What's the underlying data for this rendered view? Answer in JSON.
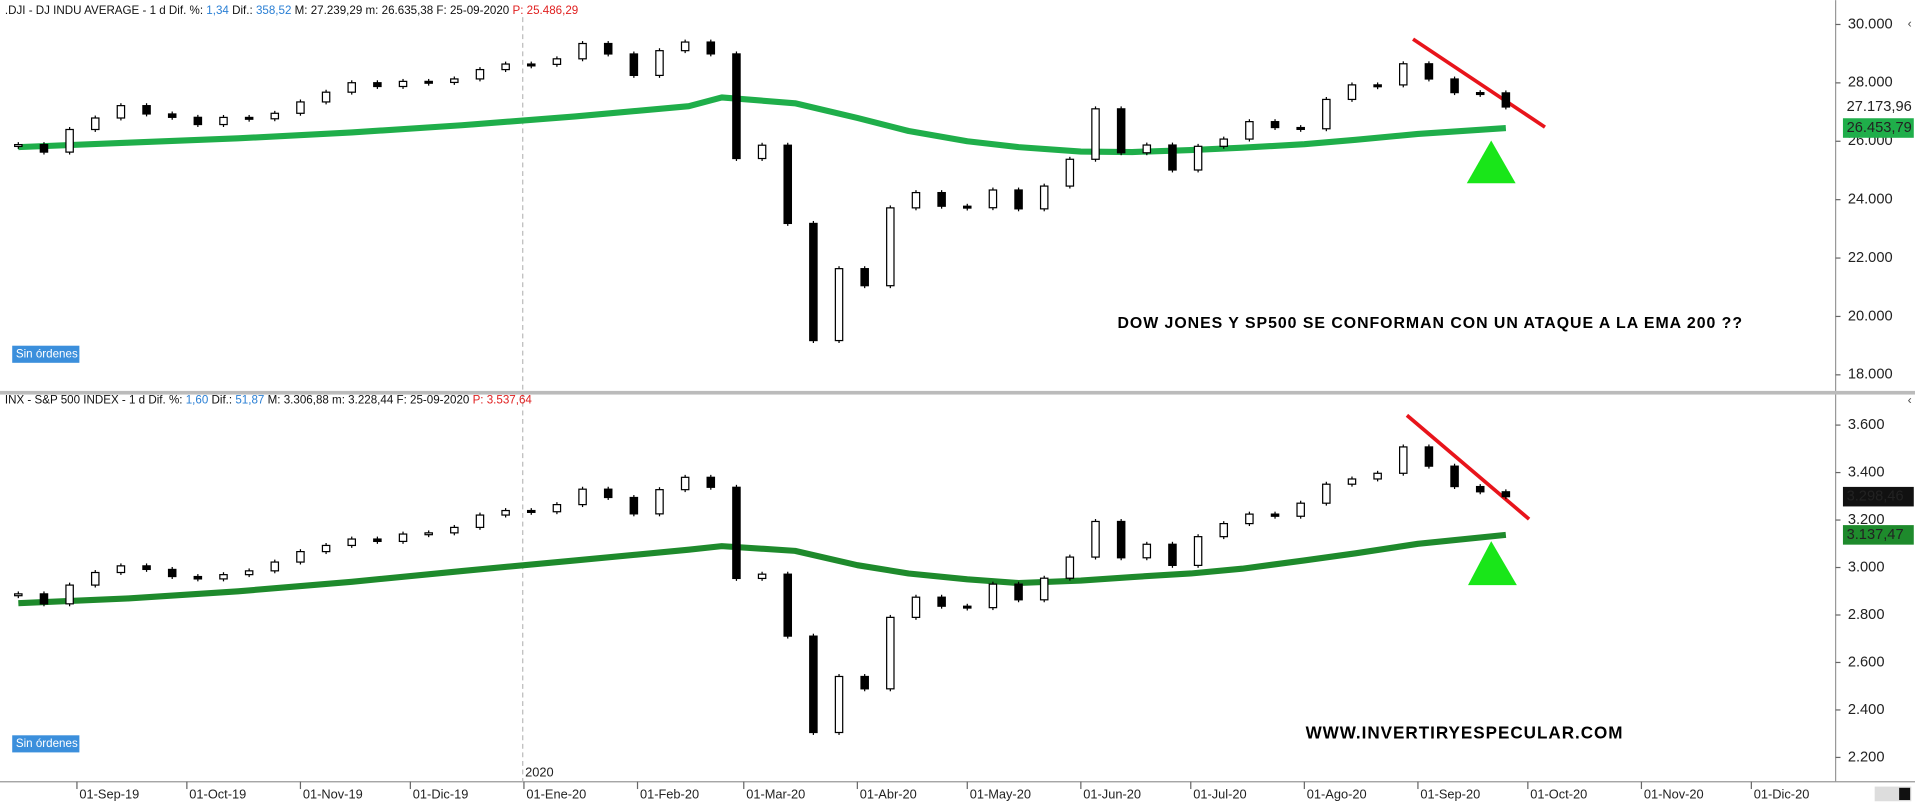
{
  "chart_data": [
    {
      "type": "candlestick",
      "header": [
        {
          "text": ".DJI - DJ INDU AVERAGE - 1 d  Dif. %:",
          "color": "#111"
        },
        {
          "text": " 1,34 ",
          "color": "#2a7fd4"
        },
        {
          "text": " Dif.:",
          "color": "#111"
        },
        {
          "text": " 358,52 ",
          "color": "#2a7fd4"
        },
        {
          "text": " M: 27.239,29  m: 26.635,38  F: 25-09-2020 ",
          "color": "#111"
        },
        {
          "text": " P: 25.486,29",
          "color": "#e02020"
        }
      ],
      "annotation": "DOW JONES Y SP500 SE CONFORMAN CON UN ATAQUE A LA EMA 200 ??",
      "button": "Sin órdenes",
      "xlim": [
        "2019-08-11",
        "2020-12-24"
      ],
      "ylim": [
        17450,
        30250
      ],
      "yticks": [
        {
          "value": 18000,
          "label": "18.000"
        },
        {
          "value": 20000,
          "label": "20.000"
        },
        {
          "value": 22000,
          "label": "22.000"
        },
        {
          "value": 24000,
          "label": "24.000"
        },
        {
          "value": 26000,
          "label": "26.000"
        },
        {
          "value": 28000,
          "label": "28.000"
        },
        {
          "value": 30000,
          "label": "30.000"
        }
      ],
      "x": [
        "2019-08-16",
        "2019-08-23",
        "2019-08-30",
        "2019-09-06",
        "2019-09-13",
        "2019-09-20",
        "2019-09-27",
        "2019-10-04",
        "2019-10-11",
        "2019-10-18",
        "2019-10-25",
        "2019-11-01",
        "2019-11-08",
        "2019-11-15",
        "2019-11-22",
        "2019-11-29",
        "2019-12-06",
        "2019-12-13",
        "2019-12-20",
        "2019-12-27",
        "2020-01-03",
        "2020-01-10",
        "2020-01-17",
        "2020-01-24",
        "2020-01-31",
        "2020-02-07",
        "2020-02-14",
        "2020-02-21",
        "2020-02-28",
        "2020-03-06",
        "2020-03-13",
        "2020-03-20",
        "2020-03-27",
        "2020-04-03",
        "2020-04-10",
        "2020-04-17",
        "2020-04-24",
        "2020-05-01",
        "2020-05-08",
        "2020-05-15",
        "2020-05-22",
        "2020-05-29",
        "2020-06-05",
        "2020-06-12",
        "2020-06-19",
        "2020-06-26",
        "2020-07-03",
        "2020-07-10",
        "2020-07-17",
        "2020-07-24",
        "2020-07-31",
        "2020-08-07",
        "2020-08-14",
        "2020-08-21",
        "2020-08-28",
        "2020-09-04",
        "2020-09-11",
        "2020-09-18",
        "2020-09-25"
      ],
      "values": [
        25886,
        25629,
        26403,
        26797,
        27220,
        26935,
        26820,
        26573,
        26817,
        26770,
        26958,
        27347,
        27681,
        28005,
        27876,
        28051,
        28015,
        28135,
        28455,
        28645,
        28634,
        28824,
        29348,
        28990,
        28256,
        29103,
        29398,
        28992,
        25409,
        25865,
        23186,
        19174,
        21637,
        21053,
        23719,
        24242,
        23775,
        23724,
        24331,
        23685,
        24465,
        25383,
        27111,
        25606,
        25871,
        25016,
        25827,
        26075,
        26672,
        26470,
        26428,
        27433,
        27931,
        27930,
        28654,
        28133,
        27666,
        27657,
        27173.96
      ],
      "last_label": "27.173,96",
      "ema_x": [
        "2019-08-16",
        "2019-09-15",
        "2019-10-15",
        "2019-11-15",
        "2019-12-15",
        "2020-01-15",
        "2020-02-15",
        "2020-02-24",
        "2020-03-15",
        "2020-04-01",
        "2020-04-15",
        "2020-05-01",
        "2020-05-15",
        "2020-06-01",
        "2020-06-15",
        "2020-07-01",
        "2020-07-15",
        "2020-08-01",
        "2020-08-15",
        "2020-09-01",
        "2020-09-25"
      ],
      "ema_values": [
        25800,
        25950,
        26100,
        26300,
        26550,
        26850,
        27200,
        27500,
        27300,
        26800,
        26350,
        26000,
        25800,
        25650,
        25630,
        25700,
        25780,
        25900,
        26050,
        26250,
        26453.79
      ],
      "ema_label": "26.453,79",
      "ema_color": "#1fae4a",
      "last_box_color": "#ffffff",
      "last_text_color": "#2a7fd4",
      "ema_text_color": "#ffffff"
    },
    {
      "type": "candlestick",
      "header": [
        {
          "text": "INX - S&P 500 INDEX - 1 d  Dif. %:",
          "color": "#111"
        },
        {
          "text": " 1,60 ",
          "color": "#2a7fd4"
        },
        {
          "text": " Dif.:",
          "color": "#111"
        },
        {
          "text": " 51,87 ",
          "color": "#2a7fd4"
        },
        {
          "text": " M: 3.306,88  m: 3.228,44  F: 25-09-2020 ",
          "color": "#111"
        },
        {
          "text": " P: 3.537,64",
          "color": "#e02020"
        }
      ],
      "annotation": "WWW.INVERTIRYESPECULAR.COM",
      "button": "Sin órdenes",
      "year_label": "2020",
      "xlim": [
        "2019-08-11",
        "2020-12-24"
      ],
      "xticks": [
        {
          "value": "2019-09-01",
          "label": "01-Sep-19"
        },
        {
          "value": "2019-10-01",
          "label": "01-Oct-19"
        },
        {
          "value": "2019-11-01",
          "label": "01-Nov-19"
        },
        {
          "value": "2019-12-01",
          "label": "01-Dic-19"
        },
        {
          "value": "2020-01-01",
          "label": "01-Ene-20"
        },
        {
          "value": "2020-02-01",
          "label": "01-Feb-20"
        },
        {
          "value": "2020-03-01",
          "label": "01-Mar-20"
        },
        {
          "value": "2020-04-01",
          "label": "01-Abr-20"
        },
        {
          "value": "2020-05-01",
          "label": "01-May-20"
        },
        {
          "value": "2020-06-01",
          "label": "01-Jun-20"
        },
        {
          "value": "2020-07-01",
          "label": "01-Jul-20"
        },
        {
          "value": "2020-08-01",
          "label": "01-Ago-20"
        },
        {
          "value": "2020-09-01",
          "label": "01-Sep-20"
        },
        {
          "value": "2020-10-01",
          "label": "01-Oct-20"
        },
        {
          "value": "2020-11-01",
          "label": "01-Nov-20"
        },
        {
          "value": "2020-12-01",
          "label": "01-Dic-20"
        }
      ],
      "ylim": [
        2108,
        3672
      ],
      "yticks": [
        {
          "value": 2200,
          "label": "2.200"
        },
        {
          "value": 2400,
          "label": "2.400"
        },
        {
          "value": 2600,
          "label": "2.600"
        },
        {
          "value": 2800,
          "label": "2.800"
        },
        {
          "value": 3000,
          "label": "3.000"
        },
        {
          "value": 3200,
          "label": "3.200"
        },
        {
          "value": 3400,
          "label": "3.400"
        },
        {
          "value": 3600,
          "label": "3.600"
        }
      ],
      "x": [
        "2019-08-16",
        "2019-08-23",
        "2019-08-30",
        "2019-09-06",
        "2019-09-13",
        "2019-09-20",
        "2019-09-27",
        "2019-10-04",
        "2019-10-11",
        "2019-10-18",
        "2019-10-25",
        "2019-11-01",
        "2019-11-08",
        "2019-11-15",
        "2019-11-22",
        "2019-11-29",
        "2019-12-06",
        "2019-12-13",
        "2019-12-20",
        "2019-12-27",
        "2020-01-03",
        "2020-01-10",
        "2020-01-17",
        "2020-01-24",
        "2020-01-31",
        "2020-02-07",
        "2020-02-14",
        "2020-02-21",
        "2020-02-28",
        "2020-03-06",
        "2020-03-13",
        "2020-03-20",
        "2020-03-27",
        "2020-04-03",
        "2020-04-10",
        "2020-04-17",
        "2020-04-24",
        "2020-05-01",
        "2020-05-08",
        "2020-05-15",
        "2020-05-22",
        "2020-05-29",
        "2020-06-05",
        "2020-06-12",
        "2020-06-19",
        "2020-06-26",
        "2020-07-03",
        "2020-07-10",
        "2020-07-17",
        "2020-07-24",
        "2020-07-31",
        "2020-08-07",
        "2020-08-14",
        "2020-08-21",
        "2020-08-28",
        "2020-09-04",
        "2020-09-11",
        "2020-09-18",
        "2020-09-25"
      ],
      "values": [
        2889,
        2847,
        2926,
        2979,
        3007,
        2992,
        2962,
        2952,
        2970,
        2986,
        3023,
        3067,
        3093,
        3120,
        3110,
        3141,
        3146,
        3169,
        3221,
        3240,
        3235,
        3265,
        3330,
        3295,
        3226,
        3328,
        3380,
        3338,
        2954,
        2972,
        2711,
        2305,
        2541,
        2489,
        2790,
        2875,
        2837,
        2831,
        2930,
        2864,
        2955,
        3044,
        3194,
        3041,
        3098,
        3009,
        3130,
        3185,
        3225,
        3216,
        3271,
        3351,
        3373,
        3397,
        3508,
        3427,
        3341,
        3319,
        3298.46
      ],
      "last_label": "3.298,46",
      "ema_x": [
        "2019-08-16",
        "2019-09-15",
        "2019-10-15",
        "2019-11-15",
        "2019-12-15",
        "2020-01-15",
        "2020-02-15",
        "2020-02-24",
        "2020-03-15",
        "2020-04-01",
        "2020-04-15",
        "2020-05-01",
        "2020-05-15",
        "2020-06-01",
        "2020-06-15",
        "2020-07-01",
        "2020-07-15",
        "2020-08-01",
        "2020-08-15",
        "2020-09-01",
        "2020-09-25"
      ],
      "ema_values": [
        2850,
        2870,
        2900,
        2940,
        2985,
        3030,
        3075,
        3090,
        3070,
        3010,
        2975,
        2950,
        2935,
        2945,
        2960,
        2975,
        2995,
        3030,
        3060,
        3100,
        3137.47
      ],
      "ema_label": "3.137,47",
      "ema_color": "#1e8a2c",
      "last_box_color": "#111111",
      "last_text_color": "#ffffff",
      "ema_text_color": "#ffffff"
    }
  ]
}
